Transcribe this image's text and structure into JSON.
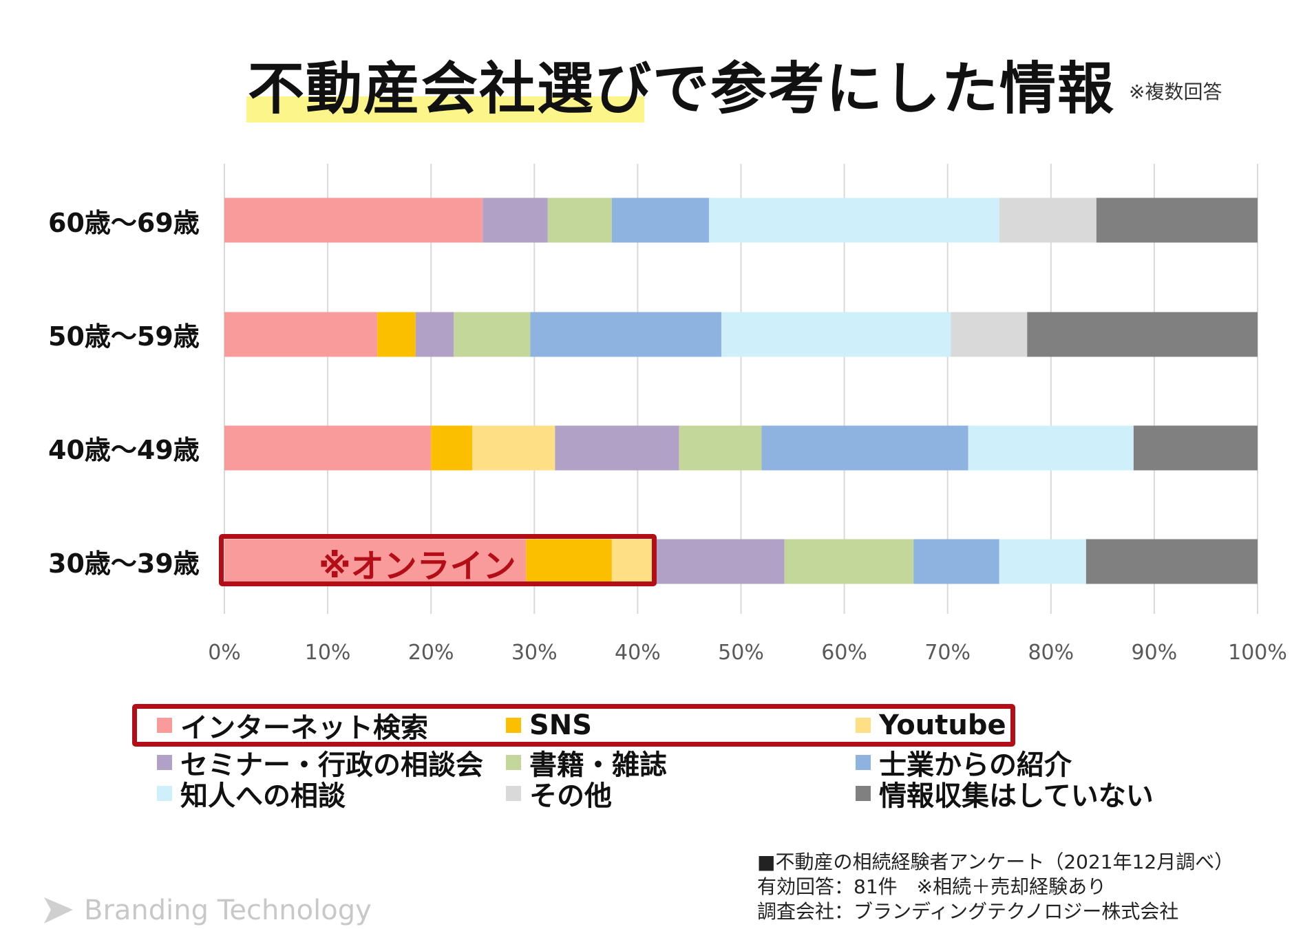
{
  "header": {
    "title": "不動産会社選びで参考にした情報",
    "note": "※複数回答"
  },
  "chart_data": {
    "type": "bar",
    "orientation": "horizontal",
    "stacked": "percent",
    "categories": [
      "60歳〜69歳",
      "50歳〜59歳",
      "40歳〜49歳",
      "30歳〜39歳"
    ],
    "x_ticks": [
      "0%",
      "10%",
      "20%",
      "30%",
      "40%",
      "50%",
      "60%",
      "70%",
      "80%",
      "90%",
      "100%"
    ],
    "xlim": [
      0,
      100
    ],
    "grid": true,
    "legend_position": "bottom",
    "series": [
      {
        "name": "インターネット検索",
        "color": "#fa9b9b",
        "values": [
          25.0,
          14.8,
          20.0,
          29.2
        ]
      },
      {
        "name": "SNS",
        "color": "#fcbf00",
        "values": [
          0,
          3.7,
          4.0,
          8.3
        ]
      },
      {
        "name": "Youtube",
        "color": "#ffdf86",
        "values": [
          0,
          0,
          8.0,
          4.2
        ]
      },
      {
        "name": "セミナー・行政の相談会",
        "color": "#b1a1c7",
        "values": [
          6.3,
          3.7,
          12.0,
          12.5
        ]
      },
      {
        "name": "書籍・雑誌",
        "color": "#c4d79b",
        "values": [
          6.2,
          7.4,
          8.0,
          12.5
        ]
      },
      {
        "name": "士業からの紹介",
        "color": "#8eb3e0",
        "values": [
          9.4,
          18.5,
          20.0,
          8.3
        ]
      },
      {
        "name": "知人への相談",
        "color": "#cff0fa",
        "values": [
          28.1,
          22.2,
          16.0,
          8.4
        ]
      },
      {
        "name": "その他",
        "color": "#d9d9d9",
        "values": [
          9.4,
          7.4,
          0,
          0
        ]
      },
      {
        "name": "情報収集はしていない",
        "color": "#808080",
        "values": [
          15.6,
          22.3,
          12.0,
          16.6
        ]
      }
    ],
    "annotation": {
      "text": "※オンライン",
      "highlight_row": "30歳〜39歳",
      "range": [
        0,
        41.7
      ]
    }
  },
  "source": {
    "line1": "■不動産の相続経験者アンケート（2021年12月調べ）",
    "line2": "有効回答：81件　※相続＋売却経験あり",
    "line3": "調査会社：ブランディングテクノロジー株式会社"
  },
  "brand": {
    "name": "Branding Technology"
  }
}
